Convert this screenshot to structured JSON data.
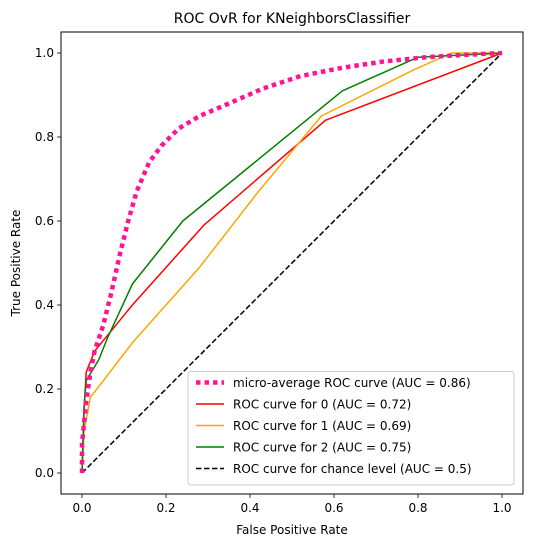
{
  "chart_data": {
    "type": "line",
    "title": "ROC OvR for KNeighborsClassifier",
    "xlabel": "False Positive Rate",
    "ylabel": "True Positive Rate",
    "xlim": [
      -0.05,
      1.05
    ],
    "ylim": [
      -0.05,
      1.05
    ],
    "xticks": [
      0.0,
      0.2,
      0.4,
      0.6,
      0.8,
      1.0
    ],
    "yticks": [
      0.0,
      0.2,
      0.4,
      0.6,
      0.8,
      1.0
    ],
    "xtick_labels": [
      "0.0",
      "0.2",
      "0.4",
      "0.6",
      "0.8",
      "1.0"
    ],
    "ytick_labels": [
      "0.0",
      "0.2",
      "0.4",
      "0.6",
      "0.8",
      "1.0"
    ],
    "grid": false,
    "legend_position": "lower-right",
    "series": [
      {
        "name": "micro-average ROC curve (AUC = 0.86)",
        "color": "#ff1493",
        "style": "dotted",
        "points": [
          [
            0.0,
            0.0
          ],
          [
            0.0,
            0.07
          ],
          [
            0.01,
            0.17
          ],
          [
            0.02,
            0.24
          ],
          [
            0.03,
            0.29
          ],
          [
            0.05,
            0.35
          ],
          [
            0.07,
            0.43
          ],
          [
            0.09,
            0.52
          ],
          [
            0.11,
            0.6
          ],
          [
            0.13,
            0.67
          ],
          [
            0.16,
            0.74
          ],
          [
            0.19,
            0.78
          ],
          [
            0.23,
            0.82
          ],
          [
            0.28,
            0.85
          ],
          [
            0.35,
            0.88
          ],
          [
            0.43,
            0.915
          ],
          [
            0.52,
            0.945
          ],
          [
            0.62,
            0.965
          ],
          [
            0.72,
            0.98
          ],
          [
            0.82,
            0.99
          ],
          [
            0.9,
            0.995
          ],
          [
            1.0,
            1.0
          ]
        ]
      },
      {
        "name": "ROC curve for 0 (AUC = 0.72)",
        "color": "#ff0000",
        "style": "solid",
        "points": [
          [
            0.0,
            0.0
          ],
          [
            0.005,
            0.15
          ],
          [
            0.01,
            0.24
          ],
          [
            0.03,
            0.29
          ],
          [
            0.12,
            0.4
          ],
          [
            0.29,
            0.59
          ],
          [
            0.58,
            0.84
          ],
          [
            1.0,
            1.0
          ]
        ]
      },
      {
        "name": "ROC curve for 1 (AUC = 0.69)",
        "color": "#ffa500",
        "style": "solid",
        "points": [
          [
            0.0,
            0.0
          ],
          [
            0.005,
            0.1
          ],
          [
            0.02,
            0.18
          ],
          [
            0.12,
            0.31
          ],
          [
            0.28,
            0.49
          ],
          [
            0.42,
            0.67
          ],
          [
            0.57,
            0.85
          ],
          [
            0.79,
            0.96
          ],
          [
            0.88,
            1.0
          ],
          [
            1.0,
            1.0
          ]
        ]
      },
      {
        "name": "ROC curve for 2 (AUC = 0.75)",
        "color": "#008000",
        "style": "solid",
        "points": [
          [
            0.0,
            0.0
          ],
          [
            0.005,
            0.16
          ],
          [
            0.01,
            0.22
          ],
          [
            0.04,
            0.27
          ],
          [
            0.06,
            0.32
          ],
          [
            0.12,
            0.45
          ],
          [
            0.24,
            0.6
          ],
          [
            0.62,
            0.91
          ],
          [
            0.8,
            0.99
          ],
          [
            1.0,
            1.0
          ]
        ]
      },
      {
        "name": "ROC curve for chance level (AUC = 0.5)",
        "color": "#000000",
        "style": "dashed",
        "points": [
          [
            0.0,
            0.0
          ],
          [
            1.0,
            1.0
          ]
        ]
      }
    ]
  }
}
